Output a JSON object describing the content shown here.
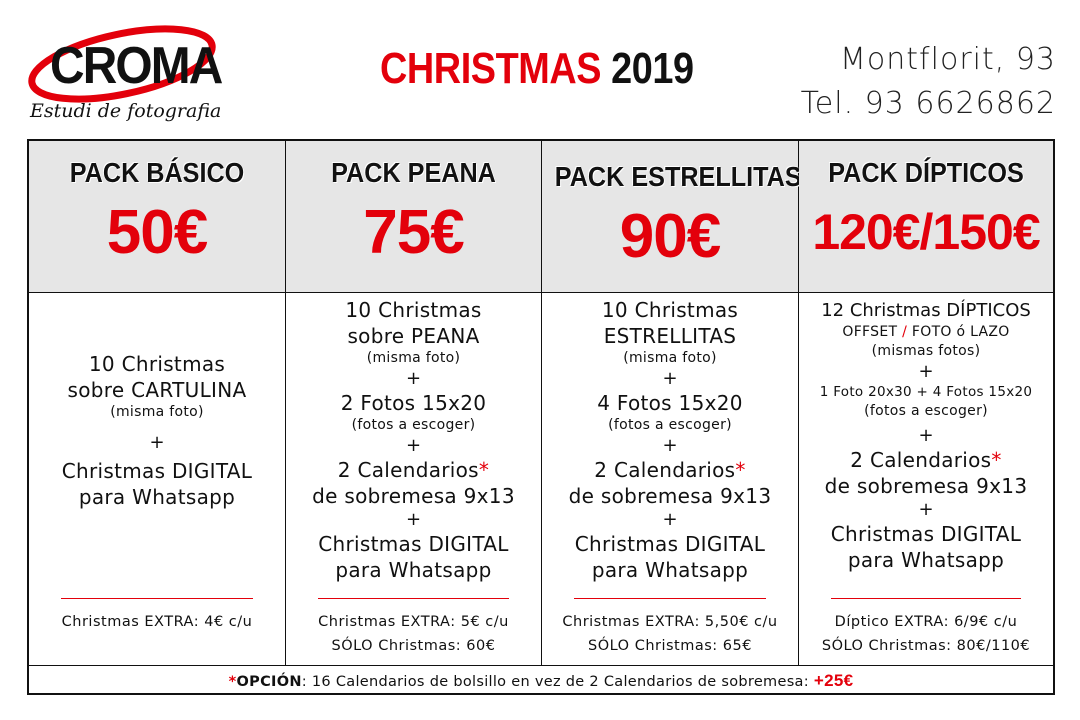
{
  "logo": {
    "brand": "CROMA",
    "tagline": "Estudi de fotografia"
  },
  "title": {
    "part1": "CHRISTMAS",
    "part2": "2019"
  },
  "contact": {
    "address": "Montflorit, 93",
    "phone": "Tel. 93 6626862"
  },
  "colors": {
    "accent_red": "#e3000b",
    "header_gray": "#e6e6e6"
  },
  "packs": [
    {
      "name": "PACK BÁSICO",
      "price": "50€",
      "l1": "10 Christmas",
      "l2": "sobre CARTULINA",
      "l3": "(misma foto)",
      "plus1": "+",
      "l4": "Christmas DIGITAL",
      "l5": "para Whatsapp",
      "extra1": "Christmas EXTRA: 4€ c/u"
    },
    {
      "name": "PACK PEANA",
      "price": "75€",
      "l1": "10 Christmas",
      "l2": "sobre PEANA",
      "l3": "(misma foto)",
      "plus1": "+",
      "l4": "2 Fotos 15x20",
      "l5": "(fotos a escoger)",
      "plus2": "+",
      "l6": "2 Calendarios",
      "ast": "*",
      "l7": "de sobremesa 9x13",
      "plus3": "+",
      "l8": "Christmas DIGITAL",
      "l9": "para Whatsapp",
      "extra1": "Christmas EXTRA: 5€ c/u",
      "extra2": "SÓLO Christmas: 60€"
    },
    {
      "name": "PACK ESTRELLITAS",
      "price": "90€",
      "l1": "10 Christmas",
      "l2": "ESTRELLITAS",
      "l3": "(misma foto)",
      "plus1": "+",
      "l4": "4 Fotos 15x20",
      "l5": "(fotos a escoger)",
      "plus2": "+",
      "l6": "2 Calendarios",
      "ast": "*",
      "l7": "de sobremesa 9x13",
      "plus3": "+",
      "l8": "Christmas DIGITAL",
      "l9": "para Whatsapp",
      "extra1": "Christmas EXTRA: 5,50€ c/u",
      "extra2": "SÓLO Christmas: 65€"
    },
    {
      "name": "PACK DÍPTICOS",
      "price": "120€/150€",
      "l1": "12 Christmas DÍPTICOS",
      "l2a": "OFFSET",
      "l2slash": "/",
      "l2b": "FOTO ó LAZO",
      "l3": "(mismas fotos)",
      "plus1": "+",
      "l4": "1 Foto 20x30 + 4 Fotos 15x20",
      "l5": "(fotos a escoger)",
      "plus2": "+",
      "l6": "2 Calendarios",
      "ast": "*",
      "l7": "de sobremesa 9x13",
      "plus3": "+",
      "l8": "Christmas DIGITAL",
      "l9": "para Whatsapp",
      "extra1": "Díptico EXTRA: 6/9€ c/u",
      "extra2": "SÓLO Christmas: 80€/110€"
    }
  ],
  "footer": {
    "asterisk": "*",
    "label": "OPCIÓN",
    "text": ": 16 Calendarios de bolsillo en vez de 2 Calendarios de sobremesa:",
    "price": "+25€"
  }
}
